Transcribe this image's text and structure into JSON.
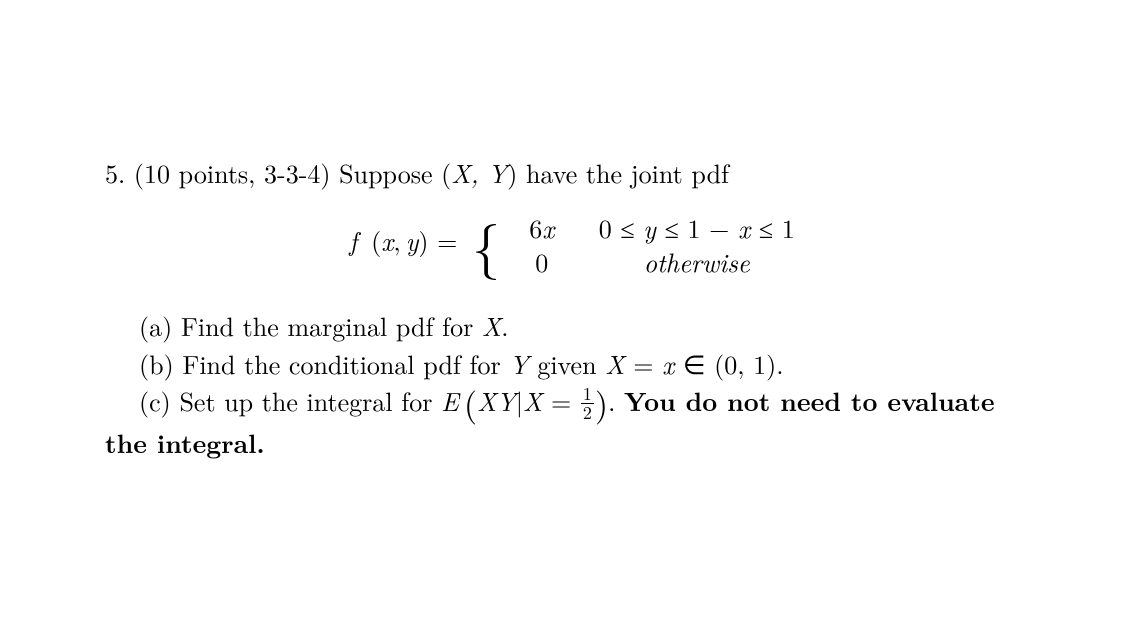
{
  "problem": {
    "number": "5.",
    "points": "(10 points, 3-3-4)",
    "intro_prefix": "Suppose (",
    "intro_vars": "X, Y",
    "intro_suffix": ") have the joint pdf"
  },
  "equation": {
    "lhs_f": "f",
    "lhs_args": "(x, y) = ",
    "case1_val": "6x",
    "case1_cond": "0 ≤ y ≤ 1 − x ≤ 1",
    "case2_val": "0",
    "case2_cond": "otherwise"
  },
  "parts": {
    "a_label": "(a)",
    "a_text1": " Find the marginal pdf for ",
    "a_var": "X",
    "a_text2": ".",
    "b_label": "(b)",
    "b_text1": " Find the conditional pdf for ",
    "b_var1": "Y",
    "b_text2": " given ",
    "b_var2": "X",
    "b_text3": " = ",
    "b_var3": "x",
    "b_text4": " ∈ (0, 1).",
    "c_label": "(c)",
    "c_text1": " Set up the integral for ",
    "c_var1": "E",
    "c_paren_open": "(",
    "c_inner1": "XY",
    "c_bar": "|",
    "c_inner2": "X",
    "c_eq": " = ",
    "c_frac_num": "1",
    "c_frac_den": "2",
    "c_paren_close": ")",
    "c_text2": ". ",
    "c_bold1": "You do not need to evaluate",
    "c_bold2": "the integral."
  }
}
